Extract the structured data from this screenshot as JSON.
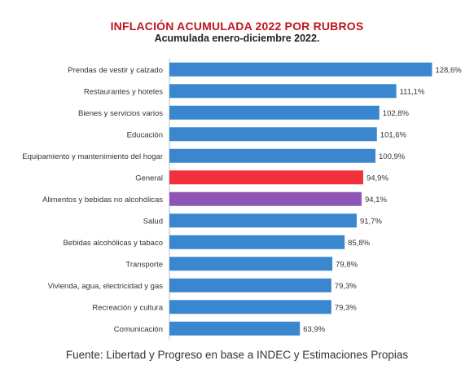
{
  "title": "INFLACIÓN ACUMULADA 2022 POR RUBROS",
  "subtitle": "Acumulada enero-diciembre 2022.",
  "source": "Fuente: Libertad y Progreso en base a INDEC y Estimaciones Propias",
  "colors": {
    "default": "#3a87cf",
    "General": "#f2313c",
    "Alimentos y bebidas no alcohólicas": "#8e56b4"
  },
  "chart_data": {
    "type": "bar",
    "orientation": "horizontal",
    "title": "INFLACIÓN ACUMULADA 2022 POR RUBROS",
    "subtitle": "Acumulada enero-diciembre 2022.",
    "categories": [
      "Prendas de vestir y calzado",
      "Restaurantes y hoteles",
      "Bienes y servicios varios",
      "Educación",
      "Equipamiento y mantenimiento del hogar",
      "General",
      "Alimentos y bebidas no alcohólicas",
      "Salud",
      "Bebidas alcohólicas y tabaco",
      "Transporte",
      "Vivienda, agua, electricidad y gas",
      "Recreación y cultura",
      "Comunicación"
    ],
    "values": [
      128.6,
      111.1,
      102.8,
      101.6,
      100.9,
      94.9,
      94.1,
      91.7,
      85.8,
      79.8,
      79.3,
      79.3,
      63.9
    ],
    "labels": [
      "128,6%",
      "111,1%",
      "102,8%",
      "101,6%",
      "100,9%",
      "94,9%",
      "94,1%",
      "91,7%",
      "85,8%",
      "79,8%",
      "79,3%",
      "79,3%",
      "63,9%"
    ],
    "xlim": [
      0,
      130
    ],
    "grid": false,
    "legend": "none"
  }
}
